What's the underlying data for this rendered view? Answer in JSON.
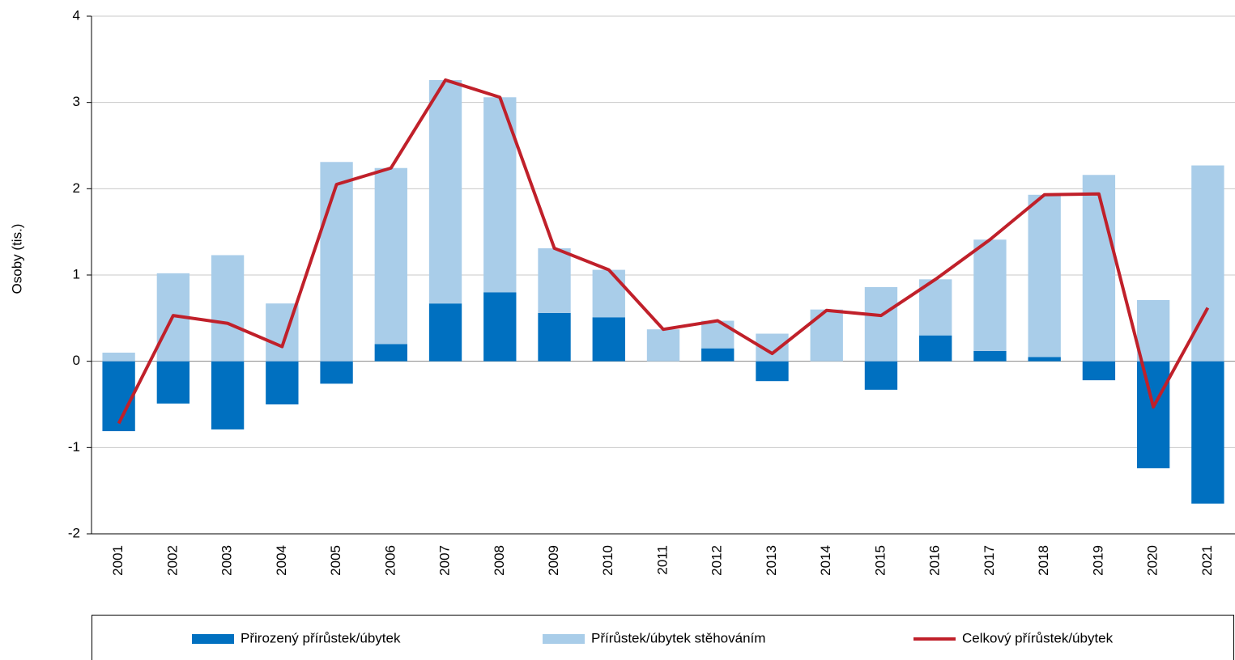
{
  "chart_data": {
    "type": "bar",
    "ylabel": "Osoby (tis.)",
    "categories": [
      "2001",
      "2002",
      "2003",
      "2004",
      "2005",
      "2006",
      "2007",
      "2008",
      "2009",
      "2010",
      "2011",
      "2012",
      "2013",
      "2014",
      "2015",
      "2016",
      "2017",
      "2018",
      "2019",
      "2020",
      "2021"
    ],
    "series": [
      {
        "name": "Přirozený přírůstek/úbytek",
        "color": "#0070c0",
        "kind": "bar",
        "values": [
          -0.81,
          -0.49,
          -0.79,
          -0.5,
          -0.26,
          0.2,
          0.67,
          0.8,
          0.56,
          0.51,
          0.0,
          0.15,
          -0.23,
          0.0,
          -0.33,
          0.3,
          0.12,
          0.05,
          -0.22,
          -1.24,
          -1.65
        ]
      },
      {
        "name": "Přírůstek/úbytek stěhováním",
        "color": "#a9cde9",
        "kind": "bar",
        "values": [
          0.1,
          1.02,
          1.23,
          0.67,
          2.31,
          2.04,
          2.59,
          2.26,
          0.75,
          0.55,
          0.37,
          0.32,
          0.32,
          0.6,
          0.86,
          0.65,
          1.29,
          1.88,
          2.16,
          0.71,
          2.27
        ]
      },
      {
        "name": "Celkový přírůstek/úbytek",
        "color": "#c0202a",
        "kind": "line",
        "values": [
          -0.72,
          0.53,
          0.44,
          0.17,
          2.05,
          2.24,
          3.26,
          3.06,
          1.31,
          1.06,
          0.37,
          0.47,
          0.09,
          0.59,
          0.53,
          0.95,
          1.41,
          1.93,
          1.94,
          -0.53,
          0.62
        ]
      }
    ],
    "ylim": [
      -2,
      4
    ],
    "yticks": [
      -2,
      -1,
      0,
      1,
      2,
      3,
      4
    ],
    "grid": true,
    "legend": "bottom"
  }
}
